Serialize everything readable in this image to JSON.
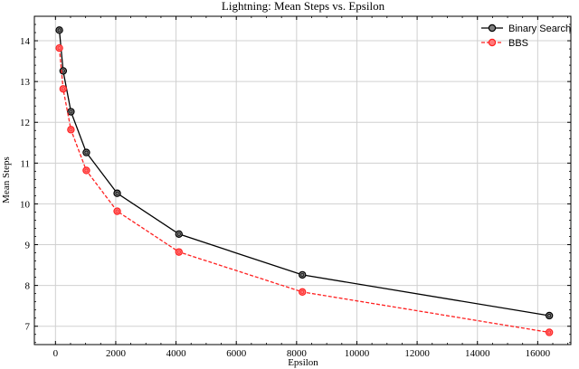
{
  "chart_data": {
    "type": "line",
    "title": "Lightning: Mean Steps vs. Epsilon",
    "xlabel": "Epsilon",
    "ylabel": "Mean Steps",
    "xlim": [
      -700,
      17100
    ],
    "ylim": [
      6.55,
      14.6
    ],
    "xticks": [
      0,
      2000,
      4000,
      6000,
      8000,
      10000,
      12000,
      14000,
      16000
    ],
    "yticks": [
      7,
      8,
      9,
      10,
      11,
      12,
      13,
      14
    ],
    "grid": true,
    "legend_position": "top-right",
    "series": [
      {
        "name": "Binary Search",
        "color": "#000000",
        "line_style": "solid",
        "marker": "circle",
        "x": [
          128,
          256,
          512,
          1024,
          2048,
          4096,
          8192,
          16384
        ],
        "y": [
          14.26,
          13.26,
          12.26,
          11.26,
          10.26,
          9.26,
          8.26,
          7.26
        ]
      },
      {
        "name": "BBS",
        "color": "#ff2020",
        "line_style": "dashed",
        "marker": "circle",
        "x": [
          128,
          256,
          512,
          1024,
          2048,
          4096,
          8192,
          16384
        ],
        "y": [
          13.82,
          12.82,
          11.82,
          10.82,
          9.82,
          8.82,
          7.84,
          6.85
        ]
      }
    ]
  }
}
